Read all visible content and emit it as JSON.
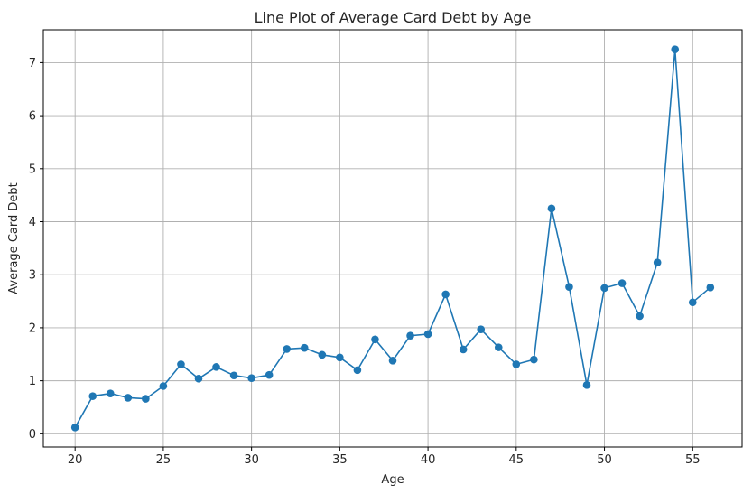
{
  "chart_data": {
    "type": "line",
    "title": "Line Plot of Average Card Debt by Age",
    "xlabel": "Age",
    "ylabel": "Average Card Debt",
    "xlim": [
      18.2,
      57.8
    ],
    "ylim": [
      -0.25,
      7.62
    ],
    "xticks": [
      20,
      25,
      30,
      35,
      40,
      45,
      50,
      55
    ],
    "yticks": [
      0,
      1,
      2,
      3,
      4,
      5,
      6,
      7
    ],
    "grid": true,
    "marker": "circle",
    "series_color": "#1f77b4",
    "x": [
      20,
      21,
      22,
      23,
      24,
      25,
      26,
      27,
      28,
      29,
      30,
      31,
      32,
      33,
      34,
      35,
      36,
      37,
      38,
      39,
      40,
      41,
      42,
      43,
      44,
      45,
      46,
      47,
      48,
      49,
      50,
      51,
      52,
      53,
      54,
      55,
      56
    ],
    "y": [
      0.12,
      0.71,
      0.76,
      0.68,
      0.66,
      0.9,
      1.31,
      1.04,
      1.26,
      1.1,
      1.05,
      1.11,
      1.6,
      1.62,
      1.49,
      1.44,
      1.2,
      1.78,
      1.38,
      1.85,
      1.88,
      2.63,
      1.59,
      1.97,
      1.63,
      1.31,
      1.4,
      4.25,
      2.77,
      0.92,
      2.75,
      2.84,
      2.22,
      3.23,
      7.25,
      2.48,
      2.76
    ]
  }
}
